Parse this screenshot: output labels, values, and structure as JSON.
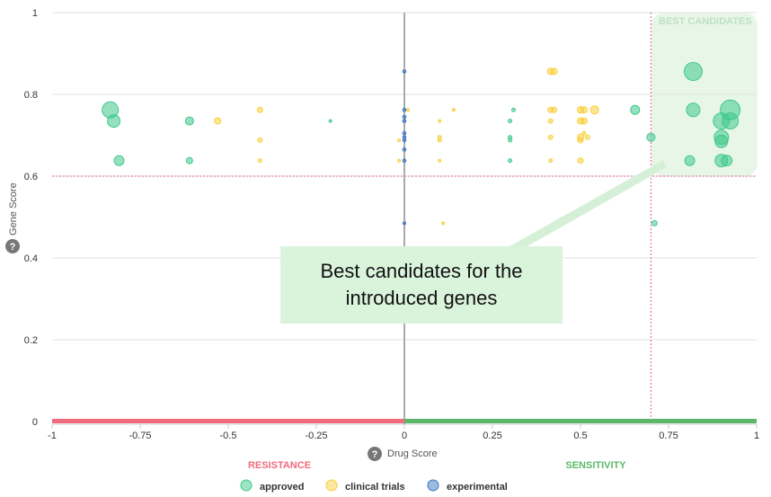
{
  "chart_data": {
    "type": "scatter",
    "title": "",
    "xlabel": "Drug Score",
    "ylabel": "Gene Score",
    "xlim": [
      -1,
      1
    ],
    "ylim": [
      0,
      1
    ],
    "x_ticks": [
      "-1",
      "-0.75",
      "-0.5",
      "-0.25",
      "0",
      "0.25",
      "0.5",
      "0.75",
      "1"
    ],
    "y_ticks": [
      "0",
      "0.2",
      "0.4",
      "0.6",
      "0.8",
      "1"
    ],
    "grid": "horizontal",
    "thresholds": {
      "x": 0.7,
      "y": 0.6
    },
    "regions": {
      "best_candidates": "BEST CANDIDATES",
      "resistance": "RESISTANCE",
      "sensitivity": "SENSITIVITY"
    },
    "legend_position": "bottom",
    "colors": {
      "approved": "#3ec98a",
      "clinical_trials": "#f9cf3b",
      "experimental": "#3a78c4",
      "resistance": "#f06c7e",
      "sensitivity": "#5cb868",
      "best_region": "#e8f6e8",
      "threshold_line": "#e0609a"
    },
    "series": [
      {
        "name": "approved",
        "key": "approved",
        "points": [
          {
            "x": -0.835,
            "y": 0.762,
            "size": 9
          },
          {
            "x": -0.825,
            "y": 0.735,
            "size": 7
          },
          {
            "x": -0.81,
            "y": 0.638,
            "size": 5.5
          },
          {
            "x": -0.61,
            "y": 0.735,
            "size": 4.5
          },
          {
            "x": -0.61,
            "y": 0.638,
            "size": 3.5
          },
          {
            "x": -0.21,
            "y": 0.735,
            "size": 1.5
          },
          {
            "x": 0.3,
            "y": 0.735,
            "size": 2
          },
          {
            "x": 0.3,
            "y": 0.695,
            "size": 2
          },
          {
            "x": 0.3,
            "y": 0.688,
            "size": 2
          },
          {
            "x": 0.3,
            "y": 0.638,
            "size": 2
          },
          {
            "x": 0.31,
            "y": 0.762,
            "size": 2
          },
          {
            "x": 0.655,
            "y": 0.762,
            "size": 5
          },
          {
            "x": 0.7,
            "y": 0.695,
            "size": 4.5
          },
          {
            "x": 0.71,
            "y": 0.485,
            "size": 3
          },
          {
            "x": 0.81,
            "y": 0.638,
            "size": 5.5
          },
          {
            "x": 0.82,
            "y": 0.856,
            "size": 10
          },
          {
            "x": 0.82,
            "y": 0.762,
            "size": 7.5
          },
          {
            "x": 0.9,
            "y": 0.735,
            "size": 9
          },
          {
            "x": 0.9,
            "y": 0.695,
            "size": 8
          },
          {
            "x": 0.9,
            "y": 0.685,
            "size": 7
          },
          {
            "x": 0.9,
            "y": 0.638,
            "size": 7
          },
          {
            "x": 0.915,
            "y": 0.638,
            "size": 6
          },
          {
            "x": 0.925,
            "y": 0.762,
            "size": 11
          },
          {
            "x": 0.925,
            "y": 0.735,
            "size": 9
          }
        ]
      },
      {
        "name": "clinical trials",
        "key": "clinical_trials",
        "points": [
          {
            "x": -0.53,
            "y": 0.735,
            "size": 3.5
          },
          {
            "x": -0.41,
            "y": 0.762,
            "size": 3
          },
          {
            "x": -0.41,
            "y": 0.688,
            "size": 2.5
          },
          {
            "x": -0.41,
            "y": 0.638,
            "size": 2
          },
          {
            "x": -0.015,
            "y": 0.688,
            "size": 1.5
          },
          {
            "x": -0.015,
            "y": 0.638,
            "size": 1.5
          },
          {
            "x": 0.01,
            "y": 0.762,
            "size": 1.5
          },
          {
            "x": 0.1,
            "y": 0.735,
            "size": 1.5
          },
          {
            "x": 0.1,
            "y": 0.695,
            "size": 2
          },
          {
            "x": 0.1,
            "y": 0.688,
            "size": 2
          },
          {
            "x": 0.1,
            "y": 0.638,
            "size": 1.5
          },
          {
            "x": 0.11,
            "y": 0.485,
            "size": 1.5
          },
          {
            "x": 0.14,
            "y": 0.762,
            "size": 1.5
          },
          {
            "x": 0.415,
            "y": 0.856,
            "size": 3.5
          },
          {
            "x": 0.425,
            "y": 0.856,
            "size": 3.5
          },
          {
            "x": 0.415,
            "y": 0.762,
            "size": 3
          },
          {
            "x": 0.425,
            "y": 0.762,
            "size": 3
          },
          {
            "x": 0.415,
            "y": 0.735,
            "size": 2.5
          },
          {
            "x": 0.415,
            "y": 0.695,
            "size": 2.5
          },
          {
            "x": 0.415,
            "y": 0.638,
            "size": 2
          },
          {
            "x": 0.5,
            "y": 0.762,
            "size": 3.5
          },
          {
            "x": 0.51,
            "y": 0.762,
            "size": 3.5
          },
          {
            "x": 0.5,
            "y": 0.735,
            "size": 3.5
          },
          {
            "x": 0.51,
            "y": 0.735,
            "size": 3.5
          },
          {
            "x": 0.5,
            "y": 0.695,
            "size": 3.5
          },
          {
            "x": 0.5,
            "y": 0.688,
            "size": 3
          },
          {
            "x": 0.52,
            "y": 0.695,
            "size": 2.5
          },
          {
            "x": 0.5,
            "y": 0.638,
            "size": 3
          },
          {
            "x": 0.54,
            "y": 0.762,
            "size": 4.5
          },
          {
            "x": 0.51,
            "y": 0.705,
            "size": 2
          }
        ]
      },
      {
        "name": "experimental",
        "key": "experimental",
        "points": [
          {
            "x": 0,
            "y": 0.856,
            "size": 1.8
          },
          {
            "x": 0,
            "y": 0.762,
            "size": 1.8
          },
          {
            "x": 0,
            "y": 0.745,
            "size": 1.8
          },
          {
            "x": 0,
            "y": 0.735,
            "size": 1.8
          },
          {
            "x": 0,
            "y": 0.705,
            "size": 1.8
          },
          {
            "x": 0,
            "y": 0.695,
            "size": 1.8
          },
          {
            "x": 0,
            "y": 0.688,
            "size": 1.8
          },
          {
            "x": 0,
            "y": 0.665,
            "size": 1.8
          },
          {
            "x": 0,
            "y": 0.638,
            "size": 1.8
          },
          {
            "x": 0,
            "y": 0.485,
            "size": 1.5
          }
        ]
      }
    ],
    "annotation": "Best candidates for the introduced genes"
  },
  "legend": [
    {
      "label": "approved",
      "key": "approved"
    },
    {
      "label": "clinical trials",
      "key": "clinical_trials"
    },
    {
      "label": "experimental",
      "key": "experimental"
    }
  ],
  "help_icon": "?"
}
